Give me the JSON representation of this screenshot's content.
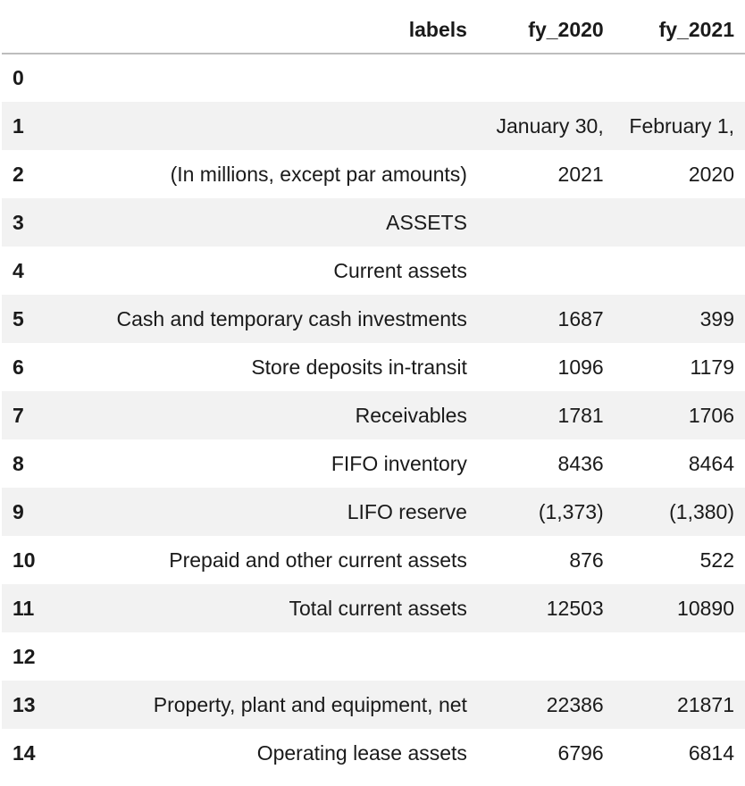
{
  "table": {
    "columns": [
      "",
      "labels",
      "fy_2020",
      "fy_2021"
    ],
    "rows": [
      {
        "index": "0",
        "labels": "",
        "fy_2020": "",
        "fy_2021": ""
      },
      {
        "index": "1",
        "labels": "",
        "fy_2020": "January 30,",
        "fy_2021": "February 1,"
      },
      {
        "index": "2",
        "labels": "(In millions, except par amounts)",
        "fy_2020": "2021",
        "fy_2021": "2020"
      },
      {
        "index": "3",
        "labels": "ASSETS",
        "fy_2020": "",
        "fy_2021": ""
      },
      {
        "index": "4",
        "labels": "Current assets",
        "fy_2020": "",
        "fy_2021": ""
      },
      {
        "index": "5",
        "labels": "Cash and temporary cash investments",
        "fy_2020": "1687",
        "fy_2021": "399"
      },
      {
        "index": "6",
        "labels": "Store deposits in-transit",
        "fy_2020": "1096",
        "fy_2021": "1179"
      },
      {
        "index": "7",
        "labels": "Receivables",
        "fy_2020": "1781",
        "fy_2021": "1706"
      },
      {
        "index": "8",
        "labels": "FIFO inventory",
        "fy_2020": "8436",
        "fy_2021": "8464"
      },
      {
        "index": "9",
        "labels": "LIFO reserve",
        "fy_2020": "(1,373)",
        "fy_2021": "(1,380)"
      },
      {
        "index": "10",
        "labels": "Prepaid and other current assets",
        "fy_2020": "876",
        "fy_2021": "522"
      },
      {
        "index": "11",
        "labels": "Total current assets",
        "fy_2020": "12503",
        "fy_2021": "10890"
      },
      {
        "index": "12",
        "labels": "",
        "fy_2020": "",
        "fy_2021": ""
      },
      {
        "index": "13",
        "labels": "Property, plant and equipment, net",
        "fy_2020": "22386",
        "fy_2021": "21871"
      },
      {
        "index": "14",
        "labels": "Operating lease assets",
        "fy_2020": "6796",
        "fy_2021": "6814"
      }
    ]
  }
}
